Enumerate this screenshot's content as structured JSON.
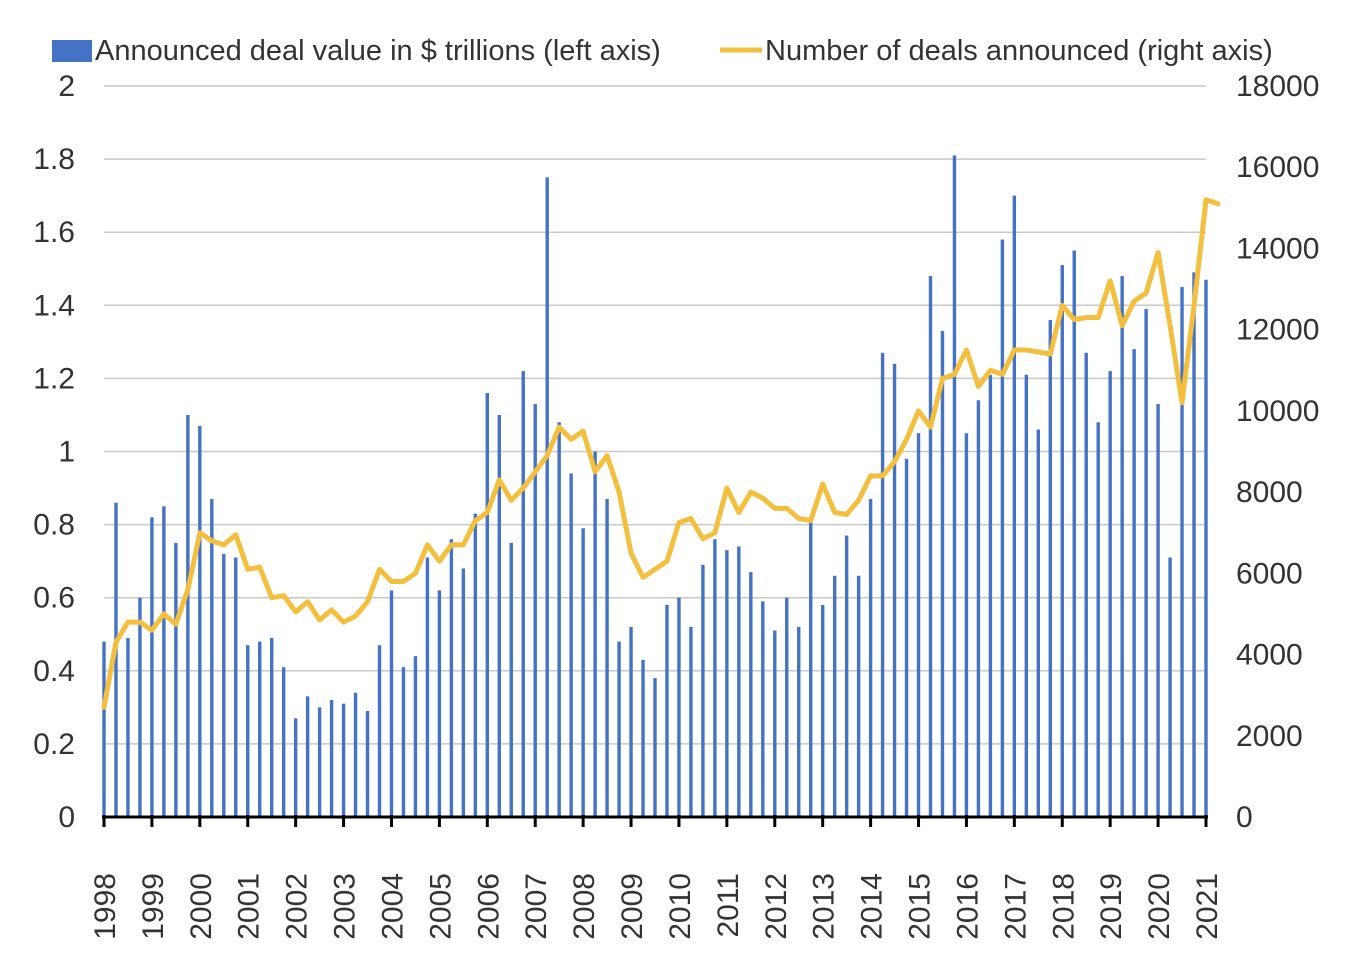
{
  "chart_data": {
    "type": "bar+line",
    "title": "",
    "legend": [
      {
        "label": "Announced deal value in $ trillions (left axis)",
        "kind": "bar",
        "color": "#4472C4"
      },
      {
        "label": "Number of deals announced (right axis)",
        "kind": "line",
        "color": "#F4BF3E"
      }
    ],
    "x_tick_labels": [
      "1998",
      "1999",
      "2000",
      "2001",
      "2002",
      "2003",
      "2004",
      "2005",
      "2006",
      "2007",
      "2008",
      "2009",
      "2010",
      "2011",
      "2012",
      "2013",
      "2014",
      "2015",
      "2016",
      "2017",
      "2018",
      "2019",
      "2020",
      "2021"
    ],
    "y_left": {
      "min": 0,
      "max": 2,
      "ticks": [
        "0",
        "0.2",
        "0.4",
        "0.6",
        "0.8",
        "1",
        "1.2",
        "1.4",
        "1.6",
        "1.8",
        "2"
      ]
    },
    "y_right": {
      "min": 0,
      "max": 18000,
      "ticks": [
        "0",
        "2000",
        "4000",
        "6000",
        "8000",
        "10000",
        "12000",
        "14000",
        "16000",
        "18000"
      ]
    },
    "series": [
      {
        "name": "Announced deal value in $ trillions (left axis)",
        "axis": "left",
        "type": "bar",
        "values": [
          0.48,
          0.86,
          0.49,
          0.6,
          0.82,
          0.85,
          0.75,
          1.1,
          1.07,
          0.87,
          0.72,
          0.71,
          0.47,
          0.48,
          0.49,
          0.41,
          0.27,
          0.33,
          0.3,
          0.32,
          0.31,
          0.34,
          0.29,
          0.47,
          0.62,
          0.41,
          0.44,
          0.71,
          0.62,
          0.76,
          0.68,
          0.83,
          1.16,
          1.1,
          0.75,
          1.22,
          1.13,
          1.75,
          1.08,
          0.94,
          0.79,
          1.0,
          0.87,
          0.48,
          0.52,
          0.43,
          0.38,
          0.58,
          0.6,
          0.52,
          0.69,
          0.76,
          0.73,
          0.74,
          0.67,
          0.59,
          0.51,
          0.6,
          0.52,
          0.82,
          0.58,
          0.66,
          0.77,
          0.66,
          0.87,
          1.27,
          1.24,
          0.98,
          1.05,
          1.48,
          1.33,
          1.81,
          1.05,
          1.14,
          1.21,
          1.58,
          1.7,
          1.21,
          1.06,
          1.36,
          1.51,
          1.55,
          1.27,
          1.08,
          1.22,
          1.48,
          1.28,
          1.39,
          1.13,
          0.71,
          1.45,
          1.49,
          1.47
        ]
      },
      {
        "name": "Number of deals announced (right axis)",
        "axis": "right",
        "type": "line",
        "values": [
          2700,
          4300,
          4800,
          4800,
          4600,
          5000,
          4750,
          5600,
          7000,
          6800,
          6700,
          6950,
          6100,
          6150,
          5400,
          5450,
          5050,
          5300,
          4850,
          5100,
          4800,
          4950,
          5300,
          6100,
          5800,
          5800,
          6000,
          6700,
          6300,
          6700,
          6700,
          7300,
          7500,
          8300,
          7800,
          8100,
          8500,
          8900,
          9600,
          9300,
          9500,
          8500,
          8900,
          8000,
          6500,
          5900,
          6100,
          6300,
          7250,
          7350,
          6850,
          7000,
          8100,
          7500,
          8000,
          7850,
          7600,
          7600,
          7350,
          7300,
          8200,
          7500,
          7450,
          7800,
          8400,
          8400,
          8750,
          9300,
          10000,
          9600,
          10800,
          10900,
          11500,
          10600,
          11000,
          10900,
          11500,
          11500,
          11450,
          11400,
          12600,
          12250,
          12300,
          12300,
          13200,
          12100,
          12700,
          12900,
          13900,
          12100,
          10200,
          12600,
          15200,
          15100
        ]
      }
    ]
  }
}
